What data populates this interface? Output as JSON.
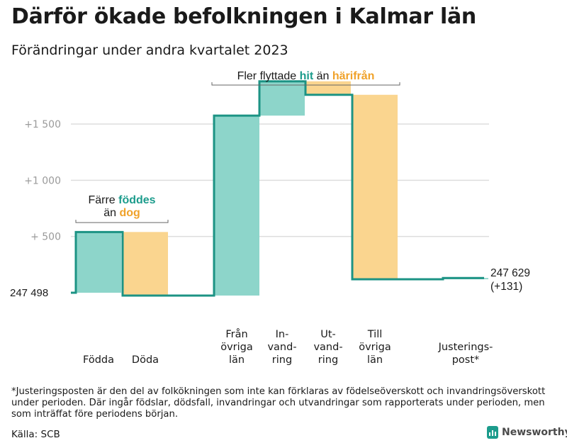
{
  "title": "Därför ökade befolkningen i Kalmar län",
  "subtitle": "Förändringar under andra kvartalet 2023",
  "footnote": "*Justeringsposten är den del av folkökningen som inte kan förklaras av födelseöverskott och invandringsöverskott under perioden. Där ingår födslar, dödsfall, invandringar och utvandringar som rapporterats under perioden, men som inträffat före periodens början.",
  "source": "Källa: SCB",
  "logo_text": "Newsworthy",
  "colors": {
    "increase": "#8dd5ca",
    "decrease": "#fad58f",
    "line": "#1c9384",
    "teal_text": "#1c9c8c",
    "orange_text": "#f0a22a",
    "grid": "#dddddd",
    "tick": "#9a9a9a"
  },
  "chart_data": {
    "type": "waterfall",
    "start_value": 247498,
    "start_label": "247   498",
    "end_label_1": "247 629",
    "end_label_2": "(+131)",
    "steps": [
      {
        "label": "Födda",
        "change": 540
      },
      {
        "label": "Döda",
        "change": -565
      },
      {
        "label": "Från övriga län",
        "change": 1600
      },
      {
        "label": "In-vandring",
        "change": 305
      },
      {
        "label": "Ut-vandring",
        "change": -120
      },
      {
        "label": "Till övriga län",
        "change": -1640
      },
      {
        "label": "Justerings-post*",
        "change": 11
      }
    ],
    "category_labels": [
      [
        "Födda"
      ],
      [
        "Döda"
      ],
      [
        "Från",
        "övriga",
        "län"
      ],
      [
        "In-",
        "vand-",
        "ring"
      ],
      [
        "Ut-",
        "vand-",
        "ring"
      ],
      [
        "Till",
        "övriga",
        "län"
      ],
      [
        "Justerings-",
        "post*"
      ]
    ],
    "ytick_values": [
      500,
      1000,
      1500
    ],
    "ytick_labels": [
      "+   500",
      "+1   000",
      "+1   500"
    ],
    "ylim": [
      -250,
      1780
    ],
    "annotations": [
      {
        "span": [
          0,
          1
        ],
        "parts": [
          [
            "Färre ",
            "plain"
          ],
          [
            "föddes",
            "teal"
          ]
        ],
        "parts2": [
          [
            "än ",
            "plain"
          ],
          [
            "dog",
            "orange"
          ]
        ]
      },
      {
        "span": [
          2,
          5
        ],
        "parts": [
          [
            "Fler flyttade ",
            "plain"
          ],
          [
            "hit",
            "teal"
          ],
          [
            " än ",
            "plain"
          ],
          [
            "härifrån",
            "orange"
          ]
        ]
      }
    ]
  }
}
